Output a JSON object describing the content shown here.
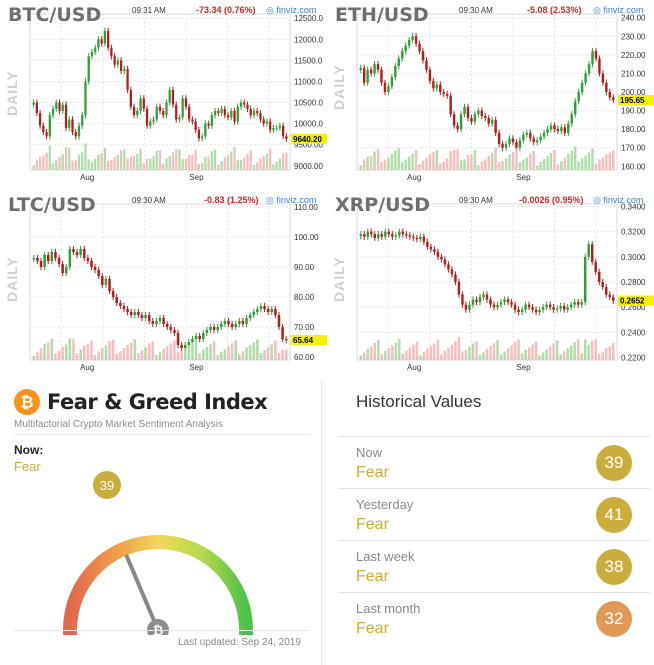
{
  "charts": [
    {
      "id": "btc",
      "ticker": "BTC/USD",
      "time": "09:31 AM",
      "change": "-73.34 (0.76%)",
      "brand": "finviz.com",
      "daily": "DAILY",
      "ticks": [
        "12500.0",
        "12000.0",
        "11500.0",
        "11000.0",
        "10500.0",
        "10000.0",
        "9500.00",
        "9000.00"
      ],
      "tickvals": [
        12500,
        12000,
        11500,
        11000,
        10500,
        10000,
        9500,
        9000
      ],
      "ymin": 8900,
      "ymax": 12600,
      "last": "9640.20",
      "lastval": 9640.2,
      "months": [
        "Aug",
        "Sep"
      ],
      "closes": [
        10500,
        10250,
        9950,
        9800,
        9700,
        10200,
        10350,
        10500,
        10300,
        10450,
        9900,
        10100,
        9800,
        9700,
        9950,
        10200,
        11000,
        11600,
        11700,
        11800,
        12000,
        11900,
        12200,
        11800,
        11600,
        11400,
        11500,
        11250,
        11300,
        10800,
        10400,
        10200,
        10300,
        10600,
        10350,
        9950,
        10050,
        10100,
        10400,
        10300,
        10200,
        10500,
        10800,
        10450,
        10100,
        10150,
        10600,
        10400,
        10100,
        10050,
        9850,
        9650,
        9700,
        10000,
        9950,
        10200,
        10300,
        10250,
        10350,
        10200,
        10150,
        10300,
        10050,
        10400,
        10500,
        10450,
        10350,
        10200,
        10300,
        10250,
        10100,
        10000,
        10050,
        9850,
        9900,
        9900,
        9950,
        9700,
        9640
      ]
    },
    {
      "id": "eth",
      "ticker": "ETH/USD",
      "time": "09:30 AM",
      "change": "-5.08 (2.53%)",
      "brand": "finviz.com",
      "daily": "DAILY",
      "ticks": [
        "240.00",
        "230.00",
        "220.00",
        "210.00",
        "200.00",
        "190.00",
        "180.00",
        "170.00",
        "160.00"
      ],
      "tickvals": [
        240,
        230,
        220,
        210,
        200,
        190,
        180,
        170,
        160
      ],
      "ymin": 158,
      "ymax": 242,
      "last": "195.65",
      "lastval": 195.65,
      "months": [
        "Aug",
        "Sep"
      ],
      "closes": [
        213,
        205,
        212,
        210,
        215,
        212,
        205,
        200,
        203,
        208,
        214,
        218,
        222,
        225,
        228,
        230,
        226,
        222,
        217,
        212,
        206,
        202,
        204,
        200,
        199,
        198,
        188,
        182,
        180,
        188,
        192,
        186,
        184,
        188,
        190,
        187,
        186,
        183,
        185,
        178,
        172,
        170,
        172,
        175,
        173,
        170,
        174,
        177,
        178,
        175,
        173,
        174,
        176,
        178,
        180,
        182,
        180,
        179,
        181,
        178,
        183,
        188,
        195,
        200,
        205,
        210,
        215,
        222,
        218,
        210,
        205,
        200,
        197,
        195.65
      ]
    },
    {
      "id": "ltc",
      "ticker": "LTC/USD",
      "time": "09:30 AM",
      "change": "-0.83 (1.25%)",
      "brand": "finviz.com",
      "daily": "DAILY",
      "ticks": [
        "110.00",
        "100.00",
        "90.00",
        "80.00",
        "70.00",
        "60.00"
      ],
      "tickvals": [
        110,
        100,
        90,
        80,
        70,
        60
      ],
      "ymin": 59,
      "ymax": 111,
      "last": "65.64",
      "lastval": 65.64,
      "months": [
        "Aug",
        "Sep"
      ],
      "closes": [
        93,
        92,
        90,
        94,
        92,
        95,
        93,
        91,
        88,
        90,
        96,
        95,
        94,
        96,
        93,
        92,
        90,
        89,
        87,
        84,
        86,
        82,
        80,
        78,
        77,
        76,
        75,
        74,
        75,
        74,
        73,
        74,
        72,
        71,
        72,
        73,
        71,
        70,
        69,
        68,
        64,
        63,
        64,
        65,
        66,
        67,
        66,
        68,
        69,
        70,
        69,
        70,
        71,
        72,
        71,
        70,
        71,
        72,
        71,
        73,
        74,
        75,
        76,
        77,
        76,
        75,
        76,
        74,
        70,
        66,
        65.64
      ]
    },
    {
      "id": "xrp",
      "ticker": "XRP/USD",
      "time": "09:30 AM",
      "change": "-0.0026 (0.95%)",
      "brand": "finviz.com",
      "daily": "DAILY",
      "ticks": [
        "0.3400",
        "0.3200",
        "0.3000",
        "0.2800",
        "0.2600",
        "0.2400",
        "0.2200"
      ],
      "tickvals": [
        0.34,
        0.32,
        0.3,
        0.28,
        0.26,
        0.24,
        0.22
      ],
      "ymin": 0.218,
      "ymax": 0.342,
      "last": "0.2652",
      "lastval": 0.2652,
      "months": [
        "Aug",
        "Sep"
      ],
      "closes": [
        0.318,
        0.316,
        0.32,
        0.318,
        0.315,
        0.318,
        0.316,
        0.32,
        0.318,
        0.316,
        0.317,
        0.32,
        0.318,
        0.317,
        0.316,
        0.315,
        0.314,
        0.316,
        0.312,
        0.308,
        0.306,
        0.304,
        0.3,
        0.298,
        0.294,
        0.29,
        0.286,
        0.28,
        0.27,
        0.262,
        0.258,
        0.262,
        0.266,
        0.264,
        0.268,
        0.27,
        0.266,
        0.262,
        0.26,
        0.262,
        0.264,
        0.266,
        0.264,
        0.262,
        0.258,
        0.256,
        0.258,
        0.262,
        0.26,
        0.258,
        0.256,
        0.258,
        0.26,
        0.262,
        0.26,
        0.258,
        0.259,
        0.261,
        0.258,
        0.26,
        0.262,
        0.264,
        0.262,
        0.264,
        0.3,
        0.31,
        0.296,
        0.288,
        0.28,
        0.276,
        0.27,
        0.268,
        0.2652
      ]
    }
  ],
  "fear_greed": {
    "title": "Fear & Greed Index",
    "subtitle": "Multifactorial Crypto Market Sentiment Analysis",
    "now_label": "Now:",
    "now_value": "Fear",
    "score": "39",
    "scoreval": 39,
    "updated": "Last updated: Sep 24, 2019",
    "gauge_center": "₿"
  },
  "historical": {
    "title": "Historical Values",
    "rows": [
      {
        "label": "Now",
        "value": "Fear",
        "score": "39",
        "color": "#c9ad3d"
      },
      {
        "label": "Yesterday",
        "value": "Fear",
        "score": "41",
        "color": "#c9ad3d"
      },
      {
        "label": "Last week",
        "value": "Fear",
        "score": "38",
        "color": "#c9ad3d"
      },
      {
        "label": "Last month",
        "value": "Fear",
        "score": "32",
        "color": "#e09a56"
      }
    ]
  },
  "colors": {
    "up": "#2f9e3a",
    "down": "#b71c1c",
    "grid": "#e4e4e4",
    "volup": "#9fd79a",
    "voldown": "#f3b1b1",
    "last": "#f5f000"
  }
}
